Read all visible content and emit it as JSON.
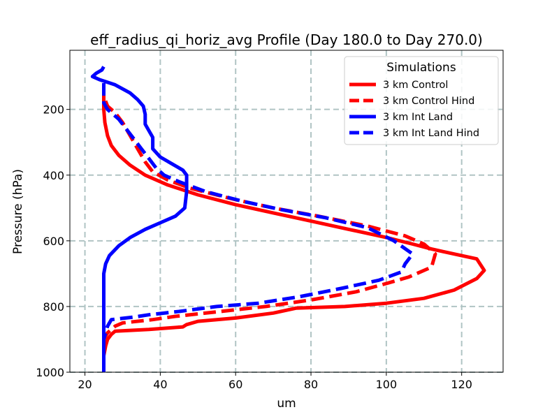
{
  "chart_data": {
    "type": "line",
    "title": "eff_radius_qi_horiz_avg Profile (Day 180.0 to Day 270.0)",
    "xlabel": "um",
    "ylabel": "Pressure (hPa)",
    "xlim": [
      16,
      131
    ],
    "ylim": [
      1000,
      20
    ],
    "y_inverted": true,
    "xticks": [
      20,
      40,
      60,
      80,
      100,
      120
    ],
    "yticks": [
      200,
      400,
      600,
      800,
      1000
    ],
    "grid": true,
    "legend": {
      "title": "Simulations",
      "placement": "top-right"
    },
    "series": [
      {
        "name": "3 km Control",
        "color": "#ff0000",
        "style": "solid",
        "points": [
          [
            25,
            120
          ],
          [
            25,
            160
          ],
          [
            25,
            200
          ],
          [
            25.3,
            240
          ],
          [
            26,
            280
          ],
          [
            27,
            310
          ],
          [
            29,
            340
          ],
          [
            32,
            370
          ],
          [
            36,
            400
          ],
          [
            42,
            430
          ],
          [
            50,
            460
          ],
          [
            60,
            490
          ],
          [
            70,
            515
          ],
          [
            80,
            540
          ],
          [
            90,
            565
          ],
          [
            100,
            590
          ],
          [
            107,
            610
          ],
          [
            112,
            625
          ],
          [
            118,
            640
          ],
          [
            124,
            655
          ],
          [
            126,
            690
          ],
          [
            124,
            715
          ],
          [
            118,
            750
          ],
          [
            110,
            775
          ],
          [
            100,
            790
          ],
          [
            89,
            800
          ],
          [
            76,
            805
          ],
          [
            70,
            820
          ],
          [
            60,
            835
          ],
          [
            50,
            845
          ],
          [
            47,
            855
          ],
          [
            46,
            862
          ],
          [
            37,
            870
          ],
          [
            28,
            875
          ],
          [
            27,
            885
          ],
          [
            26,
            900
          ],
          [
            25.5,
            920
          ],
          [
            25,
            950
          ],
          [
            25,
            1000
          ]
        ]
      },
      {
        "name": "3 km Control Hind",
        "color": "#ff0000",
        "style": "dashed",
        "points": [
          [
            25,
            120
          ],
          [
            25,
            160
          ],
          [
            26,
            190
          ],
          [
            28,
            210
          ],
          [
            30,
            240
          ],
          [
            32,
            280
          ],
          [
            34,
            320
          ],
          [
            36,
            360
          ],
          [
            38,
            390
          ],
          [
            42,
            415
          ],
          [
            48,
            440
          ],
          [
            60,
            475
          ],
          [
            70,
            500
          ],
          [
            82,
            525
          ],
          [
            95,
            555
          ],
          [
            105,
            585
          ],
          [
            110,
            610
          ],
          [
            113,
            640
          ],
          [
            112,
            680
          ],
          [
            106,
            710
          ],
          [
            100,
            730
          ],
          [
            92,
            755
          ],
          [
            80,
            780
          ],
          [
            68,
            800
          ],
          [
            56,
            815
          ],
          [
            44,
            830
          ],
          [
            38,
            840
          ],
          [
            30,
            850
          ],
          [
            28,
            860
          ],
          [
            26,
            880
          ],
          [
            25,
            900
          ],
          [
            25,
            1000
          ]
        ]
      },
      {
        "name": "3 km Int Land",
        "color": "#0000ff",
        "style": "solid",
        "points": [
          [
            25,
            70
          ],
          [
            24.5,
            80
          ],
          [
            23,
            90
          ],
          [
            22,
            100
          ],
          [
            24,
            110
          ],
          [
            28,
            125
          ],
          [
            32,
            150
          ],
          [
            34,
            170
          ],
          [
            35.5,
            190
          ],
          [
            36,
            215
          ],
          [
            36,
            245
          ],
          [
            37,
            265
          ],
          [
            38,
            285
          ],
          [
            38,
            320
          ],
          [
            40,
            345
          ],
          [
            43,
            365
          ],
          [
            46,
            385
          ],
          [
            47,
            400
          ],
          [
            47,
            450
          ],
          [
            46.5,
            500
          ],
          [
            44,
            525
          ],
          [
            40,
            545
          ],
          [
            36,
            565
          ],
          [
            32,
            590
          ],
          [
            29,
            615
          ],
          [
            26.5,
            645
          ],
          [
            25.5,
            670
          ],
          [
            25,
            700
          ],
          [
            25,
            750
          ],
          [
            25,
            800
          ],
          [
            25,
            850
          ],
          [
            25,
            900
          ],
          [
            25,
            1000
          ]
        ]
      },
      {
        "name": "3 km Int Land Hind",
        "color": "#0000ff",
        "style": "dashed",
        "points": [
          [
            25,
            120
          ],
          [
            25,
            150
          ],
          [
            25,
            180
          ],
          [
            26,
            200
          ],
          [
            29,
            230
          ],
          [
            31,
            260
          ],
          [
            33,
            290
          ],
          [
            35,
            320
          ],
          [
            37,
            350
          ],
          [
            39,
            380
          ],
          [
            41,
            400
          ],
          [
            45,
            420
          ],
          [
            52,
            450
          ],
          [
            62,
            480
          ],
          [
            72,
            505
          ],
          [
            84,
            530
          ],
          [
            95,
            560
          ],
          [
            102,
            600
          ],
          [
            107,
            640
          ],
          [
            105,
            670
          ],
          [
            104,
            695
          ],
          [
            98,
            720
          ],
          [
            88,
            745
          ],
          [
            77,
            770
          ],
          [
            66,
            790
          ],
          [
            55,
            800
          ],
          [
            45,
            815
          ],
          [
            37,
            825
          ],
          [
            33,
            832
          ],
          [
            27,
            840
          ],
          [
            26,
            860
          ],
          [
            25,
            900
          ],
          [
            25,
            1000
          ]
        ]
      }
    ]
  }
}
